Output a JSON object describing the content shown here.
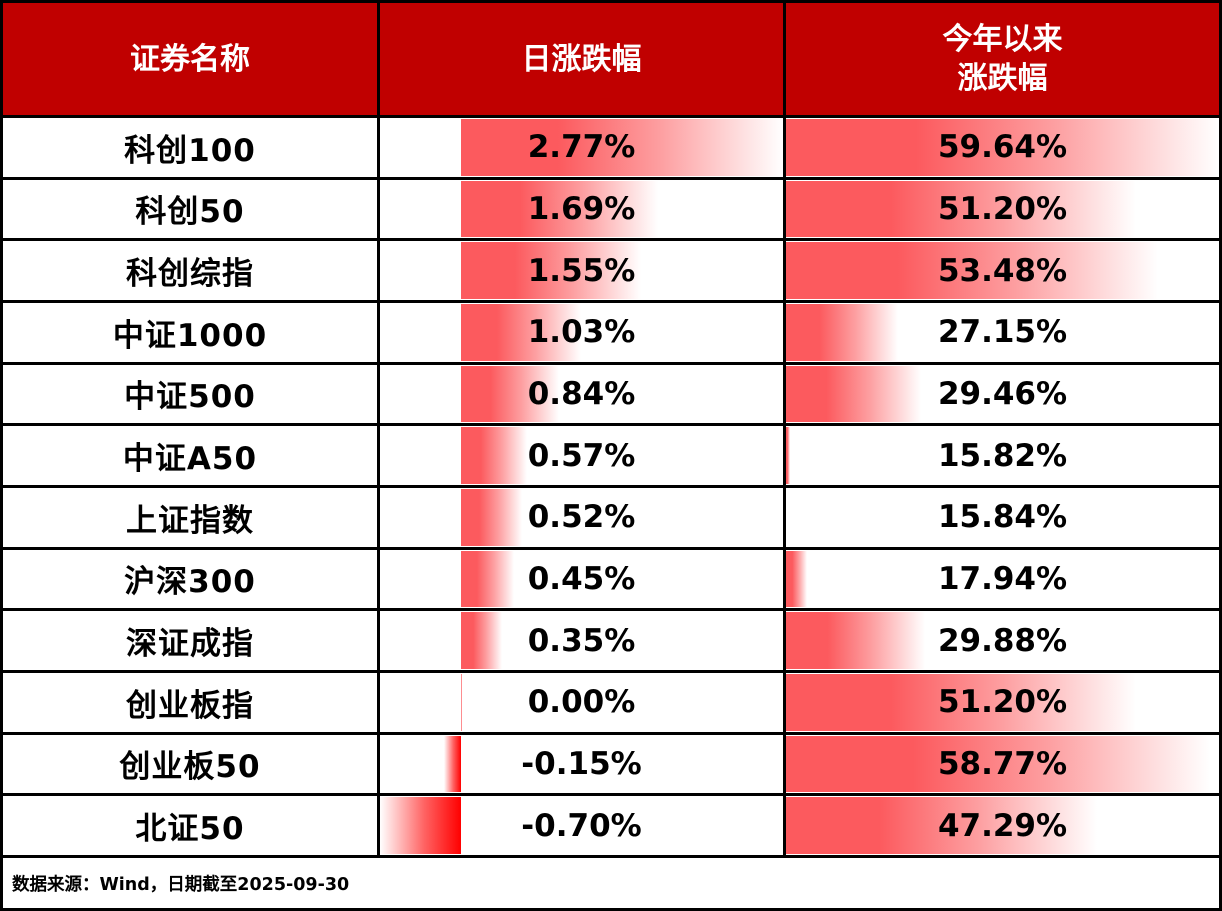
{
  "header": {
    "col_name": "证券名称",
    "col_daily": "日涨跌幅",
    "col_ytd_line1": "今年以来",
    "col_ytd_line2": "涨跌幅"
  },
  "footer": {
    "source_note": "数据来源：Wind，日期截至2025-09-30"
  },
  "colors": {
    "header_bg": "#c00000",
    "positive_bar": "#fc5a5e",
    "negative_bar": "#ff0000",
    "border": "#000000",
    "cell_bg": "#ffffff",
    "header_text": "#ffffff",
    "value_text": "#000000"
  },
  "chart_data": {
    "type": "table",
    "title": "",
    "columns": [
      "证券名称",
      "日涨跌幅",
      "今年以来涨跌幅"
    ],
    "value_format": "percent_2dp",
    "rows": [
      {
        "name": "科创100",
        "daily": 2.77,
        "ytd": 59.64
      },
      {
        "name": "科创50",
        "daily": 1.69,
        "ytd": 51.2
      },
      {
        "name": "科创综指",
        "daily": 1.55,
        "ytd": 53.48
      },
      {
        "name": "中证1000",
        "daily": 1.03,
        "ytd": 27.15
      },
      {
        "name": "中证500",
        "daily": 0.84,
        "ytd": 29.46
      },
      {
        "name": "中证A50",
        "daily": 0.57,
        "ytd": 15.82
      },
      {
        "name": "上证指数",
        "daily": 0.52,
        "ytd": 15.84
      },
      {
        "name": "沪深300",
        "daily": 0.45,
        "ytd": 17.94
      },
      {
        "name": "深证成指",
        "daily": 0.35,
        "ytd": 29.88
      },
      {
        "name": "创业板指",
        "daily": 0.0,
        "ytd": 51.2
      },
      {
        "name": "创业板50",
        "daily": -0.15,
        "ytd": 58.77
      },
      {
        "name": "北证50",
        "daily": -0.7,
        "ytd": 47.29
      }
    ],
    "daily_bar_axis": {
      "min": -0.7,
      "max": 2.77,
      "baseline": 0
    },
    "ytd_bar_axis": {
      "min": 15.82,
      "max": 59.64
    },
    "bar_style": "gradient-databar",
    "grid": true,
    "legend": false
  }
}
